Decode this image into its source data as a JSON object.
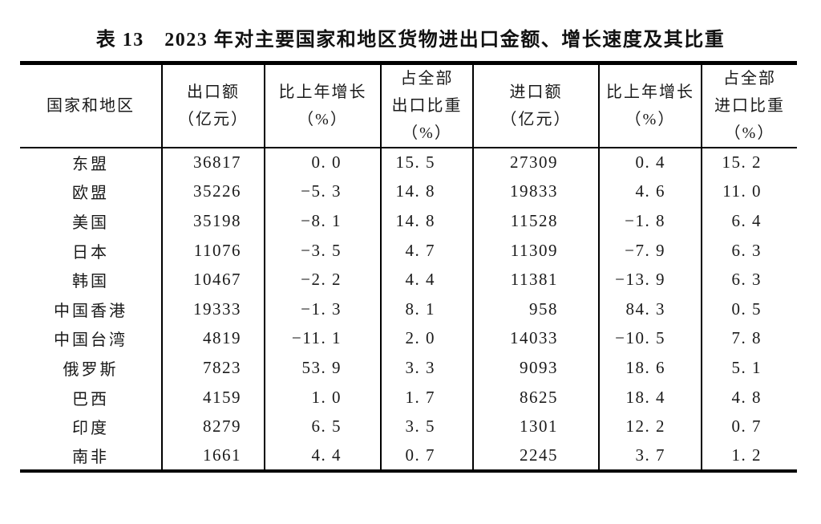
{
  "title": "表 13　2023 年对主要国家和地区货物进出口金额、增长速度及其比重",
  "table": {
    "header": [
      {
        "lines": [
          "国家和地区"
        ]
      },
      {
        "lines": [
          "出口额",
          "（亿元）"
        ]
      },
      {
        "lines": [
          "比上年增长",
          "（%）"
        ]
      },
      {
        "lines": [
          "占全部",
          "出口比重",
          "（%）"
        ]
      },
      {
        "lines": [
          "进口额",
          "（亿元）"
        ]
      },
      {
        "lines": [
          "比上年增长",
          "（%）"
        ]
      },
      {
        "lines": [
          "占全部",
          "进口比重",
          "（%）"
        ]
      }
    ],
    "rows": [
      {
        "region": "东盟",
        "export_value": "36817",
        "export_growth": "0. 0",
        "export_share": "15. 5",
        "import_value": "27309",
        "import_growth": "0. 4",
        "import_share": "15. 2"
      },
      {
        "region": "欧盟",
        "export_value": "35226",
        "export_growth": "−5. 3",
        "export_share": "14. 8",
        "import_value": "19833",
        "import_growth": "4. 6",
        "import_share": "11. 0"
      },
      {
        "region": "美国",
        "export_value": "35198",
        "export_growth": "−8. 1",
        "export_share": "14. 8",
        "import_value": "11528",
        "import_growth": "−1. 8",
        "import_share": "6. 4"
      },
      {
        "region": "日本",
        "export_value": "11076",
        "export_growth": "−3. 5",
        "export_share": "4. 7",
        "import_value": "11309",
        "import_growth": "−7. 9",
        "import_share": "6. 3"
      },
      {
        "region": "韩国",
        "export_value": "10467",
        "export_growth": "−2. 2",
        "export_share": "4. 4",
        "import_value": "11381",
        "import_growth": "−13. 9",
        "import_share": "6. 3"
      },
      {
        "region": "中国香港",
        "export_value": "19333",
        "export_growth": "−1. 3",
        "export_share": "8. 1",
        "import_value": "958",
        "import_growth": "84. 3",
        "import_share": "0. 5"
      },
      {
        "region": "中国台湾",
        "export_value": "4819",
        "export_growth": "−11. 1",
        "export_share": "2. 0",
        "import_value": "14033",
        "import_growth": "−10. 5",
        "import_share": "7. 8"
      },
      {
        "region": "俄罗斯",
        "export_value": "7823",
        "export_growth": "53. 9",
        "export_share": "3. 3",
        "import_value": "9093",
        "import_growth": "18. 6",
        "import_share": "5. 1"
      },
      {
        "region": "巴西",
        "export_value": "4159",
        "export_growth": "1. 0",
        "export_share": "1. 7",
        "import_value": "8625",
        "import_growth": "18. 4",
        "import_share": "4. 8"
      },
      {
        "region": "印度",
        "export_value": "8279",
        "export_growth": "6. 5",
        "export_share": "3. 5",
        "import_value": "1301",
        "import_growth": "12. 2",
        "import_share": "0. 7"
      },
      {
        "region": "南非",
        "export_value": "1661",
        "export_growth": "4. 4",
        "export_share": "0. 7",
        "import_value": "2245",
        "import_growth": "3. 7",
        "import_share": "1. 2"
      }
    ]
  },
  "chart_data": {
    "type": "table",
    "title": "表13 2023年对主要国家和地区货物进出口金额、增长速度及其比重",
    "columns": [
      "国家和地区",
      "出口额（亿元）",
      "比上年增长（%）",
      "占全部出口比重（%）",
      "进口额（亿元）",
      "比上年增长（%）",
      "占全部进口比重（%）"
    ],
    "rows": [
      [
        "东盟",
        36817,
        0.0,
        15.5,
        27309,
        0.4,
        15.2
      ],
      [
        "欧盟",
        35226,
        -5.3,
        14.8,
        19833,
        4.6,
        11.0
      ],
      [
        "美国",
        35198,
        -8.1,
        14.8,
        11528,
        -1.8,
        6.4
      ],
      [
        "日本",
        11076,
        -3.5,
        4.7,
        11309,
        -7.9,
        6.3
      ],
      [
        "韩国",
        10467,
        -2.2,
        4.4,
        11381,
        -13.9,
        6.3
      ],
      [
        "中国香港",
        19333,
        -1.3,
        8.1,
        958,
        84.3,
        0.5
      ],
      [
        "中国台湾",
        4819,
        -11.1,
        2.0,
        14033,
        -10.5,
        7.8
      ],
      [
        "俄罗斯",
        7823,
        53.9,
        3.3,
        9093,
        18.6,
        5.1
      ],
      [
        "巴西",
        4159,
        1.0,
        1.7,
        8625,
        18.4,
        4.8
      ],
      [
        "印度",
        8279,
        6.5,
        3.5,
        1301,
        12.2,
        0.7
      ],
      [
        "南非",
        1661,
        4.4,
        0.7,
        2245,
        3.7,
        1.2
      ]
    ]
  },
  "colors": {
    "background": "#ffffff",
    "text": "#1a1a1a",
    "border": "#000000"
  }
}
